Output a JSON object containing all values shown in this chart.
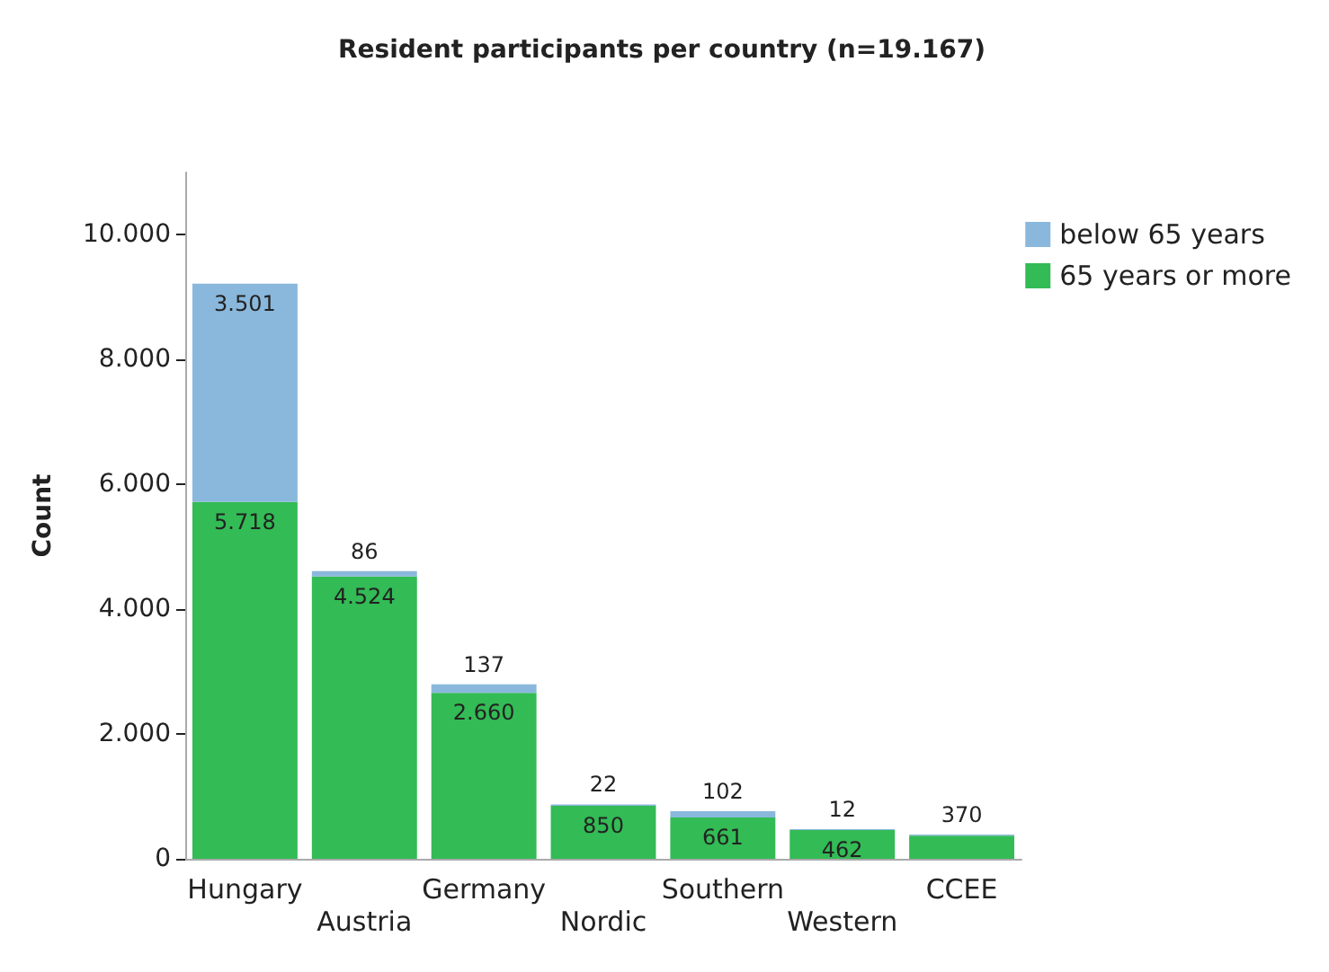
{
  "chart_data": {
    "type": "bar",
    "title": "Resident participants per country (n=19.167)",
    "ylabel": "Count",
    "stacked": true,
    "legend": "top right",
    "grid": false,
    "categories": [
      "Hungary",
      "Austria",
      "Germany",
      "Nordic",
      "Southern",
      "Western",
      "CCEE"
    ],
    "series": [
      {
        "name": "65 years or more",
        "color": "#33bb55",
        "values": [
          5718,
          4524,
          2660,
          850,
          661,
          462,
          370
        ],
        "value_labels": [
          "5.718",
          "4.524",
          "2.660",
          "850",
          "661",
          "462",
          "370"
        ]
      },
      {
        "name": "below 65 years",
        "color": "#8ab8dc",
        "values": [
          3501,
          86,
          137,
          22,
          102,
          12,
          20
        ],
        "value_labels": [
          "3.501",
          "86",
          "137",
          "22",
          "102",
          "12",
          null
        ]
      }
    ],
    "ylim": [
      0,
      11000
    ],
    "yticks": [
      {
        "value": 0,
        "label": "0"
      },
      {
        "value": 2000,
        "label": "2.000"
      },
      {
        "value": 4000,
        "label": "4.000"
      },
      {
        "value": 6000,
        "label": "6.000"
      },
      {
        "value": 8000,
        "label": "8.000"
      },
      {
        "value": 10000,
        "label": "10.000"
      }
    ]
  }
}
